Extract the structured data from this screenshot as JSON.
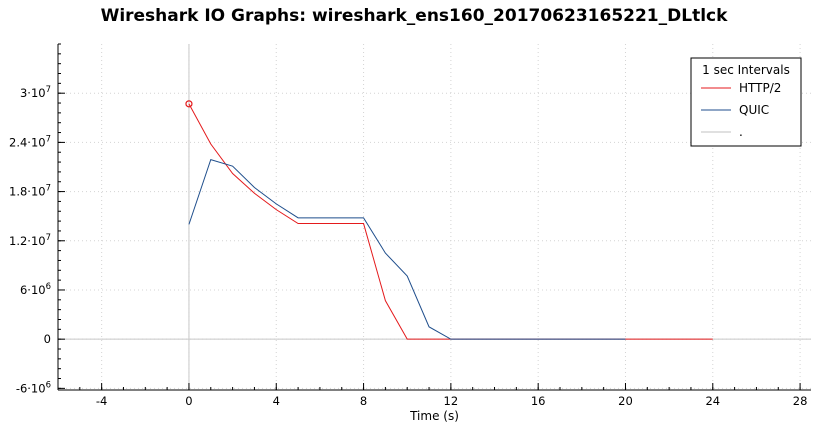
{
  "chart_data": {
    "type": "line",
    "title": "Wireshark IO Graphs: wireshark_ens160_20170623165221_DLtlck",
    "xlabel": "Time (s)",
    "ylabel": "",
    "xlim": [
      -6,
      28.5
    ],
    "ylim": [
      -6200000,
      36000000
    ],
    "x_ticks": [
      -4,
      0,
      4,
      8,
      12,
      16,
      20,
      24,
      28
    ],
    "x_tick_labels": [
      "-4",
      "0",
      "4",
      "8",
      "12",
      "16",
      "20",
      "24",
      "28"
    ],
    "y_ticks": [
      -6000000,
      0,
      6000000,
      12000000,
      18000000,
      24000000,
      30000000
    ],
    "y_tick_labels": [
      {
        "mant": "-6·10",
        "exp": "6"
      },
      {
        "mant": "0",
        "exp": ""
      },
      {
        "mant": "6·10",
        "exp": "6"
      },
      {
        "mant": "1.2·10",
        "exp": "7"
      },
      {
        "mant": "1.8·10",
        "exp": "7"
      },
      {
        "mant": "2.4·10",
        "exp": "7"
      },
      {
        "mant": "3·10",
        "exp": "7"
      }
    ],
    "grid": true,
    "legend_position": "top-right",
    "legend_title": "1 sec Intervals",
    "series": [
      {
        "name": "HTTP/2",
        "color": "#e41a1c",
        "marker_first": true,
        "x": [
          0,
          1,
          2,
          3,
          4,
          5,
          6,
          7,
          8,
          9,
          10,
          11,
          12,
          13,
          14,
          15,
          16,
          17,
          18,
          19,
          20,
          21,
          22,
          23,
          24
        ],
        "y": [
          28700000,
          23800000,
          20200000,
          17800000,
          15800000,
          14100000,
          14100000,
          14100000,
          14100000,
          4700000,
          0,
          0,
          0,
          0,
          0,
          0,
          0,
          0,
          0,
          0,
          0,
          0,
          0,
          0,
          0
        ]
      },
      {
        "name": "QUIC",
        "color": "#1f4e8c",
        "marker_first": false,
        "x": [
          0,
          1,
          2,
          3,
          4,
          5,
          6,
          7,
          8,
          9,
          10,
          11,
          12,
          13,
          14,
          15,
          16,
          17,
          18,
          19,
          20
        ],
        "y": [
          14000000,
          21900000,
          21100000,
          18500000,
          16500000,
          14800000,
          14800000,
          14800000,
          14800000,
          10500000,
          7700000,
          1500000,
          0,
          0,
          0,
          0,
          0,
          0,
          0,
          0,
          0
        ]
      },
      {
        "name": ".",
        "color": "#c0c0c0",
        "marker_first": false,
        "x": [],
        "y": []
      }
    ]
  }
}
